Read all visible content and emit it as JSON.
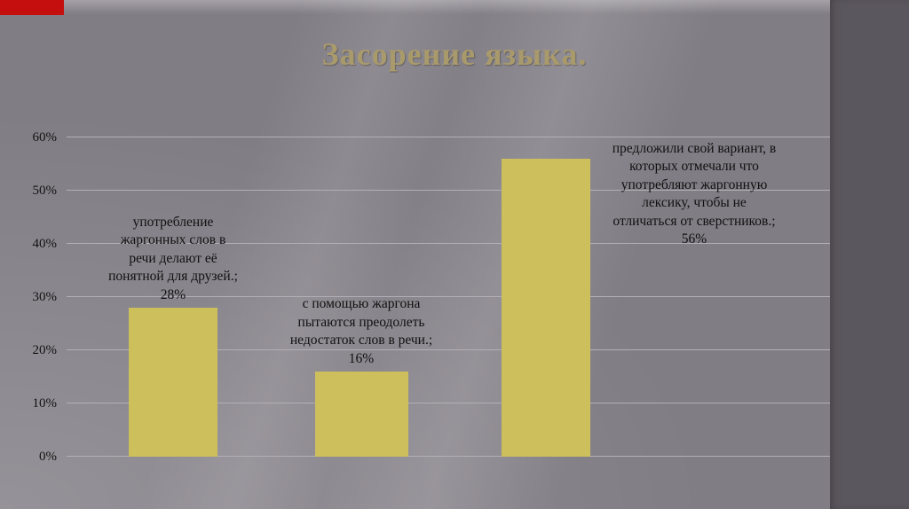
{
  "slide": {
    "title": "Засорение языка."
  },
  "decor": {
    "red_accent_color": "#c50f0f",
    "right_stripe_color": "#5b575e"
  },
  "chart_data": {
    "type": "bar",
    "title": "Засорение языка.",
    "categories": [
      "употребление жаргонных слов в речи делают её понятной для друзей.",
      "с помощью жаргона пытаются преодолеть недостаток слов в речи.",
      "предложили свой вариант, в которых отмечали что употребляют жаргонную лексику, чтобы не отличаться от сверстников."
    ],
    "values": [
      28,
      16,
      56
    ],
    "data_labels": [
      "употребление жаргонных слов в речи делают её понятной для друзей.; 28%",
      "с помощью жаргона пытаются преодолеть недостаток слов в речи.; 16%",
      "предложили свой вариант, в которых отмечали что употребляют жаргонную лексику, чтобы не отличаться от сверстников.; 56%"
    ],
    "ylim": [
      0,
      60
    ],
    "yticks": [
      "0%",
      "10%",
      "20%",
      "30%",
      "40%",
      "50%",
      "60%"
    ],
    "grid": true,
    "bar_color": "#cdbf5b",
    "label_placement": [
      "above",
      "above",
      "right"
    ],
    "legend": "none",
    "xlabel": "",
    "ylabel": ""
  }
}
